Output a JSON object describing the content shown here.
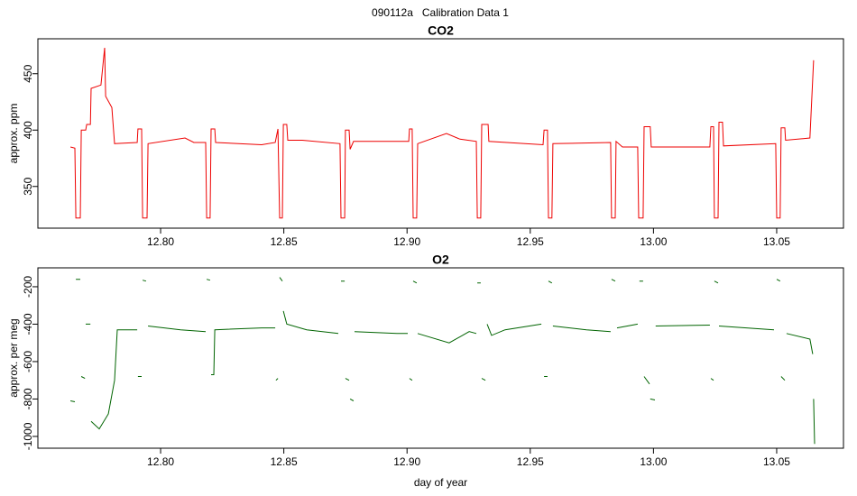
{
  "title": "090112a   Calibration Data 1",
  "chart_data": [
    {
      "type": "line",
      "title": "CO2",
      "ylabel": "approx. ppm",
      "color": "#ee0000",
      "xlim": [
        12.7502,
        13.0771
      ],
      "xticks": [
        {
          "value": 12.8,
          "label": "12.80"
        },
        12.85,
        {
          "value": 12.9,
          "label": "12.90"
        },
        12.95,
        {
          "value": 13.0,
          "label": "13.00"
        },
        13.05
      ],
      "ylim": [
        313,
        481
      ],
      "yticks": [
        350,
        400,
        450
      ],
      "x": [
        12.7634,
        12.7652,
        12.7656,
        12.7674,
        12.7678,
        12.7696,
        12.77,
        12.7715,
        12.7718,
        12.7758,
        12.7773,
        12.7777,
        12.7802,
        12.7813,
        12.7905,
        12.7908,
        12.7923,
        12.7927,
        12.7945,
        12.7949,
        12.8099,
        12.8135,
        12.8183,
        12.8187,
        12.8201,
        12.8205,
        12.822,
        12.8223,
        12.841,
        12.8465,
        12.8476,
        12.8483,
        12.8494,
        12.8498,
        12.8512,
        12.8516,
        12.8575,
        12.8728,
        12.8732,
        12.8747,
        12.875,
        12.8765,
        12.8769,
        12.8783,
        12.8959,
        12.9007,
        12.901,
        12.9021,
        12.9025,
        12.9039,
        12.9043,
        12.916,
        12.9215,
        12.9281,
        12.9285,
        12.9299,
        12.9303,
        12.9329,
        12.9332,
        12.9552,
        12.9556,
        12.957,
        12.9574,
        12.9588,
        12.9592,
        12.9826,
        12.983,
        12.9845,
        12.9848,
        12.9874,
        12.9936,
        12.994,
        12.9958,
        12.9962,
        12.9987,
        12.9991,
        13.0229,
        13.0233,
        13.0244,
        13.0247,
        13.0262,
        13.0266,
        13.028,
        13.0284,
        13.0496,
        13.05,
        13.0514,
        13.0518,
        13.0533,
        13.0536,
        13.0635,
        13.065
      ],
      "values": [
        385,
        384,
        322,
        322,
        400,
        400,
        405,
        405,
        437,
        440,
        473,
        430,
        420,
        388,
        389,
        401,
        401,
        322,
        322,
        388,
        393,
        389,
        389,
        322,
        322,
        401,
        401,
        389,
        387,
        389,
        401,
        322,
        322,
        405,
        405,
        391,
        391,
        388,
        322,
        322,
        400,
        400,
        383,
        390,
        390,
        390,
        401,
        401,
        322,
        322,
        388,
        397,
        392,
        390,
        322,
        322,
        405,
        405,
        390,
        387,
        400,
        400,
        322,
        322,
        388,
        389,
        322,
        322,
        390,
        385,
        385,
        322,
        322,
        403,
        403,
        385,
        385,
        403,
        403,
        322,
        322,
        407,
        407,
        386,
        388,
        322,
        322,
        402,
        402,
        391,
        393,
        462
      ]
    },
    {
      "type": "line",
      "title": "O2",
      "ylabel": "approx. per meg",
      "xlabel": "day of year",
      "color": "#006400",
      "xlim": [
        12.7502,
        13.0771
      ],
      "xticks": [
        {
          "value": 12.8,
          "label": "12.80"
        },
        12.85,
        {
          "value": 12.9,
          "label": "12.90"
        },
        12.95,
        {
          "value": 13.0,
          "label": "13.00"
        },
        13.05
      ],
      "ylim": [
        -1063,
        -99
      ],
      "yticks": [
        -1000,
        -800,
        -600,
        -400,
        -200
      ],
      "x": [
        12.7634,
        12.7652,
        null,
        12.7656,
        12.7674,
        null,
        12.7678,
        12.7693,
        null,
        12.7696,
        12.7715,
        null,
        12.7718,
        12.7751,
        12.7788,
        12.7813,
        12.7824,
        12.7905,
        null,
        12.7908,
        12.7923,
        null,
        12.7927,
        12.7941,
        null,
        12.7949,
        12.8081,
        12.8183,
        null,
        12.8187,
        12.8201,
        null,
        12.8205,
        12.8216,
        12.822,
        12.841,
        12.8465,
        null,
        12.8468,
        12.8476,
        null,
        12.8483,
        12.8494,
        null,
        12.8498,
        12.8512,
        12.8593,
        12.8721,
        null,
        12.8732,
        12.8747,
        null,
        12.875,
        12.8765,
        null,
        12.8769,
        12.8783,
        null,
        12.8787,
        12.8959,
        12.9003,
        null,
        12.901,
        12.9021,
        null,
        12.9025,
        12.9039,
        null,
        12.9043,
        12.9171,
        12.9252,
        12.9281,
        null,
        12.9285,
        12.9299,
        null,
        12.9303,
        12.9318,
        null,
        12.9325,
        12.9343,
        12.9398,
        12.9545,
        null,
        12.9556,
        12.957,
        null,
        12.9574,
        12.9588,
        null,
        12.9592,
        12.9728,
        12.9826,
        null,
        12.983,
        12.9845,
        null,
        12.9852,
        12.9936,
        null,
        12.9943,
        12.9958,
        null,
        12.9962,
        12.9984,
        null,
        12.9987,
        13.0006,
        null,
        13.0009,
        13.0229,
        null,
        13.0233,
        13.0244,
        null,
        13.0247,
        13.0262,
        null,
        13.0266,
        13.0489,
        null,
        13.05,
        13.0514,
        null,
        13.0518,
        13.0533,
        null,
        13.054,
        13.0635,
        13.0646,
        null,
        13.065,
        13.0654
      ],
      "values": [
        -810,
        -815,
        null,
        -160,
        -160,
        null,
        -680,
        -690,
        null,
        -400,
        -400,
        null,
        -920,
        -960,
        -880,
        -700,
        -430,
        -430,
        null,
        -680,
        -680,
        null,
        -165,
        -170,
        null,
        -410,
        -430,
        -440,
        null,
        -160,
        -165,
        null,
        -670,
        -670,
        -430,
        -420,
        -420,
        null,
        -700,
        -690,
        null,
        -150,
        -170,
        null,
        -330,
        -400,
        -430,
        -450,
        null,
        -170,
        -170,
        null,
        -690,
        -700,
        null,
        -800,
        -810,
        null,
        -440,
        -450,
        -450,
        null,
        -690,
        -700,
        null,
        -170,
        -180,
        null,
        -450,
        -500,
        -440,
        -450,
        null,
        -180,
        -180,
        null,
        -690,
        -700,
        null,
        -400,
        -460,
        -430,
        -400,
        null,
        -680,
        -680,
        null,
        -170,
        -180,
        null,
        -410,
        -430,
        -440,
        null,
        -160,
        -170,
        null,
        -420,
        -400,
        null,
        -170,
        -170,
        null,
        -680,
        -720,
        null,
        -800,
        -805,
        null,
        -410,
        -405,
        null,
        -690,
        -700,
        null,
        -170,
        -180,
        null,
        -410,
        -430,
        null,
        -160,
        -170,
        null,
        -680,
        -700,
        null,
        -450,
        -480,
        -560,
        null,
        -800,
        -1040
      ]
    }
  ]
}
